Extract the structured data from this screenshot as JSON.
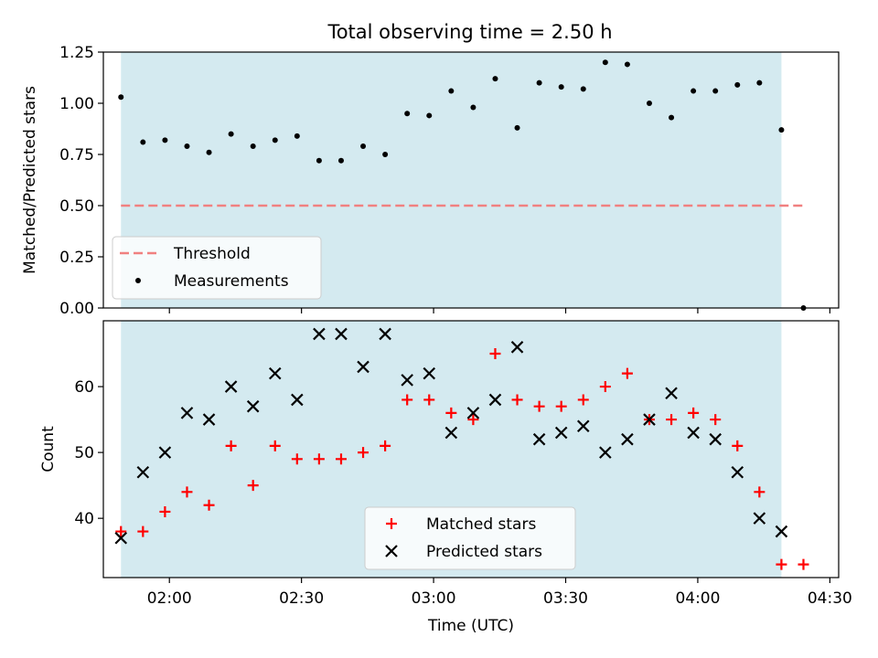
{
  "title": "Total observing time = 2.50 h",
  "colors": {
    "shade": "#d4eaf0",
    "threshold": "#f08080",
    "matched": "#ff0000",
    "predicted": "#000000",
    "measurement": "#000000"
  },
  "chart_data": [
    {
      "type": "scatter",
      "panel": "top",
      "ylabel": "Matched/Predicted stars",
      "xlim": [
        "01:45",
        "04:32"
      ],
      "ylim": [
        0,
        1.25
      ],
      "yticks": [
        "0.00",
        "0.25",
        "0.50",
        "0.75",
        "1.00",
        "1.25"
      ],
      "shaded_span": [
        "01:49",
        "04:19"
      ],
      "threshold": {
        "name": "Threshold",
        "y": 0.5,
        "x_range": [
          "01:49",
          "04:24"
        ]
      },
      "series": [
        {
          "name": "Measurements",
          "x": [
            "01:49",
            "01:54",
            "01:59",
            "02:04",
            "02:09",
            "02:14",
            "02:19",
            "02:24",
            "02:29",
            "02:34",
            "02:39",
            "02:44",
            "02:49",
            "02:54",
            "02:59",
            "03:04",
            "03:09",
            "03:14",
            "03:19",
            "03:24",
            "03:29",
            "03:34",
            "03:39",
            "03:44",
            "03:49",
            "03:54",
            "03:59",
            "04:04",
            "04:09",
            "04:14",
            "04:19",
            "04:24"
          ],
          "y": [
            1.03,
            0.81,
            0.82,
            0.79,
            0.76,
            0.85,
            0.79,
            0.82,
            0.84,
            0.72,
            0.72,
            0.79,
            0.75,
            0.95,
            0.94,
            1.06,
            0.98,
            1.12,
            0.88,
            1.1,
            1.08,
            1.07,
            1.2,
            1.19,
            1.0,
            0.93,
            1.06,
            1.06,
            1.09,
            1.1,
            0.87,
            0.0
          ]
        }
      ],
      "legend": {
        "placement": "lower-left",
        "entries": [
          "Threshold",
          "Measurements"
        ]
      }
    },
    {
      "type": "scatter",
      "panel": "bottom",
      "xlabel": "Time (UTC)",
      "ylabel": "Count",
      "xlim": [
        "01:45",
        "04:32"
      ],
      "ylim": [
        31,
        70
      ],
      "xticks": [
        "02:00",
        "02:30",
        "03:00",
        "03:30",
        "04:00",
        "04:30"
      ],
      "yticks": [
        "40",
        "50",
        "60"
      ],
      "shaded_span": [
        "01:49",
        "04:19"
      ],
      "series": [
        {
          "name": "Matched stars",
          "x": [
            "01:49",
            "01:54",
            "01:59",
            "02:04",
            "02:09",
            "02:14",
            "02:19",
            "02:24",
            "02:29",
            "02:34",
            "02:39",
            "02:44",
            "02:49",
            "02:54",
            "02:59",
            "03:04",
            "03:09",
            "03:14",
            "03:19",
            "03:24",
            "03:29",
            "03:34",
            "03:39",
            "03:44",
            "03:49",
            "03:54",
            "03:59",
            "04:04",
            "04:09",
            "04:14",
            "04:19",
            "04:24"
          ],
          "y": [
            38,
            38,
            41,
            44,
            42,
            51,
            45,
            51,
            49,
            49,
            49,
            50,
            51,
            58,
            58,
            56,
            55,
            65,
            58,
            57,
            57,
            58,
            60,
            62,
            55,
            55,
            56,
            55,
            51,
            44,
            33,
            33
          ]
        },
        {
          "name": "Predicted stars",
          "x": [
            "01:49",
            "01:54",
            "01:59",
            "02:04",
            "02:09",
            "02:14",
            "02:19",
            "02:24",
            "02:29",
            "02:34",
            "02:39",
            "02:44",
            "02:49",
            "02:54",
            "02:59",
            "03:04",
            "03:09",
            "03:14",
            "03:19",
            "03:24",
            "03:29",
            "03:34",
            "03:39",
            "03:44",
            "03:49",
            "03:54",
            "03:59",
            "04:04",
            "04:09",
            "04:14",
            "04:19"
          ],
          "y": [
            37,
            47,
            50,
            56,
            55,
            60,
            57,
            62,
            58,
            68,
            68,
            63,
            68,
            61,
            62,
            53,
            56,
            58,
            66,
            52,
            53,
            54,
            50,
            52,
            55,
            59,
            53,
            52,
            47,
            40,
            38
          ]
        }
      ],
      "legend": {
        "placement": "lower-center",
        "entries": [
          "Matched stars",
          "Predicted stars"
        ]
      }
    }
  ]
}
